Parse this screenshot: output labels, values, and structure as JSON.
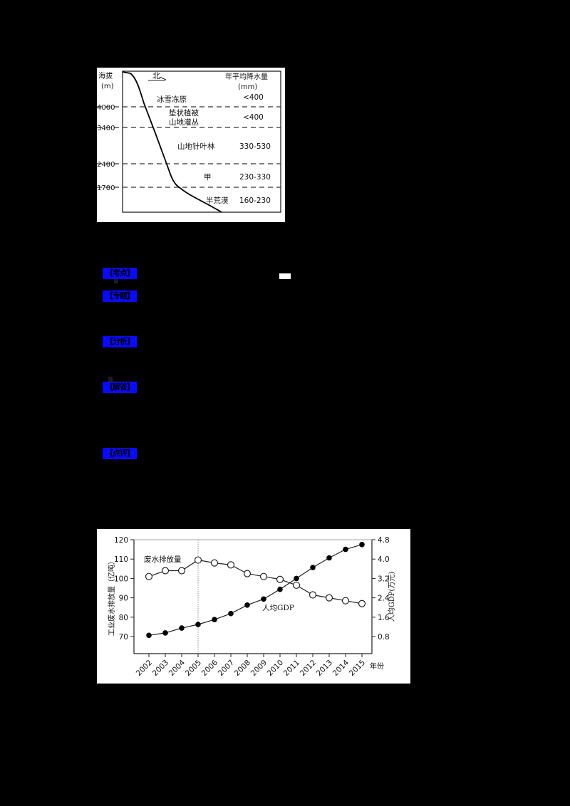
{
  "figure1": {
    "y_axis_label_line1": "海拔",
    "y_axis_label_line2": "(m)",
    "direction_label": "北",
    "precip_header_line1": "年平均降水量",
    "precip_header_line2": "(mm)",
    "altitude_ticks": [
      "4000",
      "3400",
      "2400",
      "1700"
    ],
    "zones": [
      {
        "name_line1": "冰雪冻原",
        "name_line2": "",
        "precip": "<400"
      },
      {
        "name_line1": "垫状植被",
        "name_line2": "山地灌丛",
        "precip": "<400"
      },
      {
        "name_line1": "山地针叶林",
        "name_line2": "",
        "precip": "330-530"
      },
      {
        "name_line1": "甲",
        "name_line2": "",
        "precip": "230-330"
      },
      {
        "name_line1": "半荒漠",
        "name_line2": "",
        "precip": "160-230"
      }
    ]
  },
  "sections": {
    "tags": [
      "【考点】",
      "【专题】",
      "【分析】",
      "【解答】",
      "【点评】"
    ]
  },
  "chart_data": {
    "type": "line",
    "title": "",
    "xlabel": "年份",
    "ylabel": "工业废水排放量（亿吨）",
    "ylabel_right": "人均GDP(万元)",
    "x": [
      "2002",
      "2003",
      "2004",
      "2005",
      "2006",
      "2007",
      "2008",
      "2009",
      "2010",
      "2011",
      "2012",
      "2013",
      "2014",
      "2015"
    ],
    "ylim": [
      60,
      120
    ],
    "ylim_right": [
      0,
      4.8
    ],
    "yticks": [
      70,
      80,
      90,
      100,
      110,
      120
    ],
    "yticks_right": [
      "0.8",
      "1.6",
      "2.4",
      "3.2",
      "4.0",
      "4.8"
    ],
    "grid": false,
    "reference_line_x": "2005",
    "series": [
      {
        "name": "废水排放量",
        "axis": "left",
        "marker": "open-circle",
        "values": [
          101,
          104,
          104,
          109.5,
          108,
          107,
          102.5,
          101,
          99.5,
          96.5,
          91.5,
          90,
          88.5,
          87
        ]
      },
      {
        "name": "人均GDP",
        "axis": "right",
        "marker": "filled-circle",
        "values": [
          0.85,
          0.95,
          1.15,
          1.3,
          1.5,
          1.75,
          2.1,
          2.35,
          2.75,
          3.2,
          3.65,
          4.05,
          4.4,
          4.6
        ]
      }
    ]
  }
}
